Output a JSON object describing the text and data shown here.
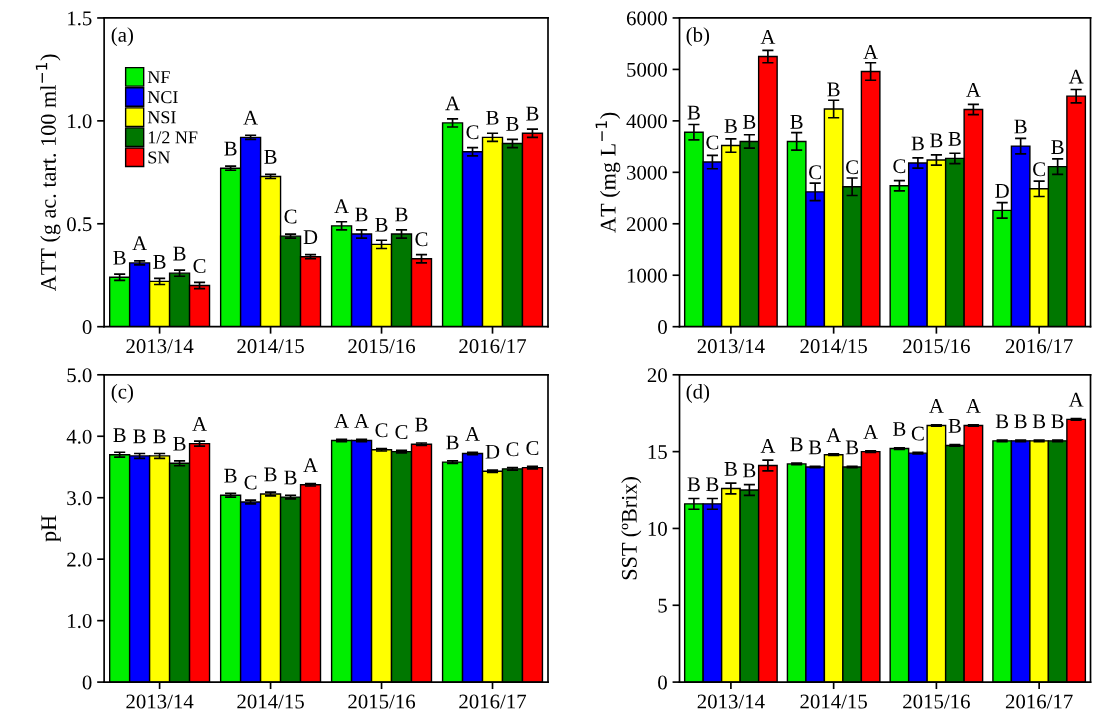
{
  "chart_data": [
    {
      "type": "bar",
      "ylabel": "ATT (g ac. tart. 100 ml$^{−1}$)",
      "annotations": [
        "(a)"
      ],
      "categories": [
        "2013/14",
        "2014/15",
        "2015/16",
        "2016/17"
      ],
      "ylim": [
        0,
        1.5
      ],
      "yticks": [
        0,
        0.5,
        {
          "value": 1.0,
          "label": "1.0"
        },
        1.5
      ],
      "legend": "top left",
      "grid": false,
      "series": [
        {
          "name": "NF",
          "color": "#00ee00",
          "values": [
            0.24,
            0.77,
            0.49,
            0.99
          ],
          "errors": [
            0.015,
            0.01,
            0.02,
            0.02
          ],
          "value_labels": [
            "B",
            "B",
            "A",
            "A"
          ]
        },
        {
          "name": "NCI",
          "color": "#0000ff",
          "values": [
            0.31,
            0.92,
            0.45,
            0.85
          ],
          "errors": [
            0.01,
            0.01,
            0.02,
            0.02
          ],
          "value_labels": [
            "A",
            "A",
            "B",
            "C"
          ]
        },
        {
          "name": "NSI",
          "color": "#ffff00",
          "values": [
            0.22,
            0.73,
            0.4,
            0.92
          ],
          "errors": [
            0.015,
            0.01,
            0.02,
            0.02
          ],
          "value_labels": [
            "B",
            "B",
            "B",
            "B"
          ]
        },
        {
          "name": "1/2 NF",
          "color": "#007700",
          "values": [
            0.26,
            0.44,
            0.45,
            0.89
          ],
          "errors": [
            0.015,
            0.01,
            0.02,
            0.02
          ],
          "value_labels": [
            "B",
            "C",
            "B",
            "B"
          ]
        },
        {
          "name": "SN",
          "color": "#ff0000",
          "values": [
            0.2,
            0.34,
            0.33,
            0.94
          ],
          "errors": [
            0.015,
            0.01,
            0.02,
            0.02
          ],
          "value_labels": [
            "C",
            "D",
            "C",
            "B"
          ]
        }
      ]
    },
    {
      "type": "bar",
      "ylabel": "AT (mg L$^{−1}$)",
      "annotations": [
        "(b)"
      ],
      "categories": [
        "2013/14",
        "2014/15",
        "2015/16",
        "2016/17"
      ],
      "ylim": [
        0,
        6000
      ],
      "yticks": [
        0,
        1000,
        2000,
        3000,
        4000,
        5000,
        6000
      ],
      "grid": false,
      "series": [
        {
          "color": "#00ee00",
          "values": [
            3780,
            3600,
            2740,
            2260
          ],
          "errors": [
            150,
            170,
            100,
            150
          ],
          "value_labels": [
            "B",
            "B",
            "C",
            "D"
          ]
        },
        {
          "color": "#0000ff",
          "values": [
            3200,
            2620,
            3180,
            3510
          ],
          "errors": [
            130,
            170,
            100,
            150
          ],
          "value_labels": [
            "C",
            "C",
            "B",
            "B"
          ]
        },
        {
          "color": "#ffff00",
          "values": [
            3520,
            4230,
            3240,
            2680
          ],
          "errors": [
            130,
            170,
            100,
            150
          ],
          "value_labels": [
            "B",
            "B",
            "B",
            "C"
          ]
        },
        {
          "color": "#007700",
          "values": [
            3600,
            2720,
            3270,
            3110
          ],
          "errors": [
            130,
            170,
            100,
            150
          ],
          "value_labels": [
            "B",
            "C",
            "B",
            "B"
          ]
        },
        {
          "color": "#ff0000",
          "values": [
            5250,
            4960,
            4220,
            4480
          ],
          "errors": [
            120,
            170,
            100,
            130
          ],
          "value_labels": [
            "A",
            "A",
            "A",
            "A"
          ]
        }
      ]
    },
    {
      "type": "bar",
      "ylabel": "pH",
      "annotations": [
        "(c)"
      ],
      "categories": [
        "2013/14",
        "2014/15",
        "2015/16",
        "2016/17"
      ],
      "ylim": [
        0,
        5
      ],
      "yticks": [
        0,
        {
          "value": 1,
          "label": "1.0"
        },
        {
          "value": 2,
          "label": "2.0"
        },
        {
          "value": 3,
          "label": "3.0"
        },
        {
          "value": 4,
          "label": "4.0"
        },
        {
          "value": 5,
          "label": "5.0"
        }
      ],
      "grid": false,
      "series": [
        {
          "color": "#00ee00",
          "values": [
            3.7,
            3.04,
            3.93,
            3.58
          ],
          "errors": [
            0.04,
            0.03,
            0.02,
            0.02
          ],
          "value_labels": [
            "B",
            "B",
            "A",
            "B"
          ]
        },
        {
          "color": "#0000ff",
          "values": [
            3.68,
            2.93,
            3.93,
            3.72
          ],
          "errors": [
            0.04,
            0.03,
            0.02,
            0.02
          ],
          "value_labels": [
            "B",
            "C",
            "A",
            "A"
          ]
        },
        {
          "color": "#ffff00",
          "values": [
            3.68,
            3.06,
            3.78,
            3.43
          ],
          "errors": [
            0.04,
            0.03,
            0.02,
            0.02
          ],
          "value_labels": [
            "B",
            "B",
            "C",
            "D"
          ]
        },
        {
          "color": "#007700",
          "values": [
            3.56,
            3.01,
            3.75,
            3.47
          ],
          "errors": [
            0.04,
            0.03,
            0.02,
            0.02
          ],
          "value_labels": [
            "B",
            "B",
            "C",
            "C"
          ]
        },
        {
          "color": "#ff0000",
          "values": [
            3.88,
            3.21,
            3.87,
            3.49
          ],
          "errors": [
            0.04,
            0.02,
            0.02,
            0.02
          ],
          "value_labels": [
            "A",
            "A",
            "B",
            "C"
          ]
        }
      ]
    },
    {
      "type": "bar",
      "ylabel": "SST (ºBrix)",
      "annotations": [
        "(d)"
      ],
      "categories": [
        "2013/14",
        "2014/15",
        "2015/16",
        "2016/17"
      ],
      "ylim": [
        0,
        20
      ],
      "yticks": [
        0,
        5,
        10,
        15,
        20
      ],
      "grid": false,
      "series": [
        {
          "color": "#00ee00",
          "values": [
            11.6,
            14.2,
            15.2,
            15.7
          ],
          "errors": [
            0.35,
            0.05,
            0.05,
            0.05
          ],
          "value_labels": [
            "B",
            "B",
            "B",
            "B"
          ]
        },
        {
          "color": "#0000ff",
          "values": [
            11.6,
            14.0,
            14.9,
            15.7
          ],
          "errors": [
            0.35,
            0.05,
            0.05,
            0.05
          ],
          "value_labels": [
            "B",
            "B",
            "C",
            "B"
          ]
        },
        {
          "color": "#ffff00",
          "values": [
            12.6,
            14.8,
            16.7,
            15.7
          ],
          "errors": [
            0.35,
            0.05,
            0.05,
            0.05
          ],
          "value_labels": [
            "B",
            "A",
            "A",
            "B"
          ]
        },
        {
          "color": "#007700",
          "values": [
            12.5,
            14.0,
            15.4,
            15.7
          ],
          "errors": [
            0.35,
            0.05,
            0.05,
            0.05
          ],
          "value_labels": [
            "B",
            "B",
            "B",
            "B"
          ]
        },
        {
          "color": "#ff0000",
          "values": [
            14.1,
            15.0,
            16.7,
            17.1
          ],
          "errors": [
            0.35,
            0.05,
            0.05,
            0.05
          ],
          "value_labels": [
            "A",
            "A",
            "A",
            "A"
          ]
        }
      ]
    }
  ]
}
